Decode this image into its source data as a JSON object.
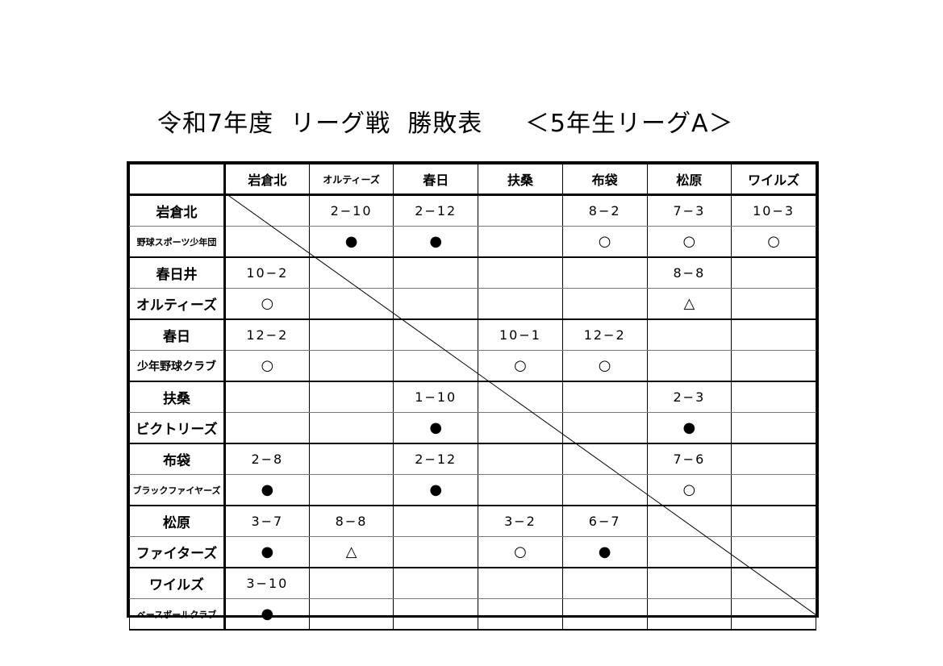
{
  "title": "令和7年度  リーグ戦  勝敗表     ＜5年生リーグA＞",
  "columns": [
    "岩倉北",
    "オルティーズ",
    "春日",
    "扶桑",
    "布袋",
    "松原",
    "ワイルズ"
  ],
  "rows": [
    {
      "name": "岩倉北",
      "team": "野球スポーツ少年団",
      "scores": [
        "",
        "2−10",
        "2−12",
        "",
        "8−2",
        "7−3",
        "10−3"
      ],
      "marks": [
        "",
        "●",
        "●",
        "",
        "○",
        "○",
        "○"
      ]
    },
    {
      "name": "春日井",
      "team": "オルティーズ",
      "scores": [
        "10−2",
        "",
        "",
        "",
        "",
        "8−8",
        ""
      ],
      "marks": [
        "○",
        "",
        "",
        "",
        "",
        "△",
        ""
      ]
    },
    {
      "name": "春日",
      "team": "少年野球クラブ",
      "scores": [
        "12−2",
        "",
        "",
        "10−1",
        "12−2",
        "",
        ""
      ],
      "marks": [
        "○",
        "",
        "",
        "○",
        "○",
        "",
        ""
      ]
    },
    {
      "name": "扶桑",
      "team": "ビクトリーズ",
      "scores": [
        "",
        "",
        "1−10",
        "",
        "",
        "2−3",
        ""
      ],
      "marks": [
        "",
        "",
        "●",
        "",
        "",
        "●",
        ""
      ]
    },
    {
      "name": "布袋",
      "team": "ブラックファイヤーズ",
      "scores": [
        "2−8",
        "",
        "2−12",
        "",
        "",
        "7−6",
        ""
      ],
      "marks": [
        "●",
        "",
        "●",
        "",
        "",
        "○",
        ""
      ]
    },
    {
      "name": "松原",
      "team": "ファイターズ",
      "scores": [
        "3−7",
        "8−8",
        "",
        "3−2",
        "6−7",
        "",
        ""
      ],
      "marks": [
        "●",
        "△",
        "",
        "○",
        "●",
        "",
        ""
      ]
    },
    {
      "name": "ワイルズ",
      "team": "ベースボールクラブ",
      "scores": [
        "3−10",
        "",
        "",
        "",
        "",
        "",
        ""
      ],
      "marks": [
        "●",
        "",
        "",
        "",
        "",
        "",
        ""
      ]
    }
  ]
}
